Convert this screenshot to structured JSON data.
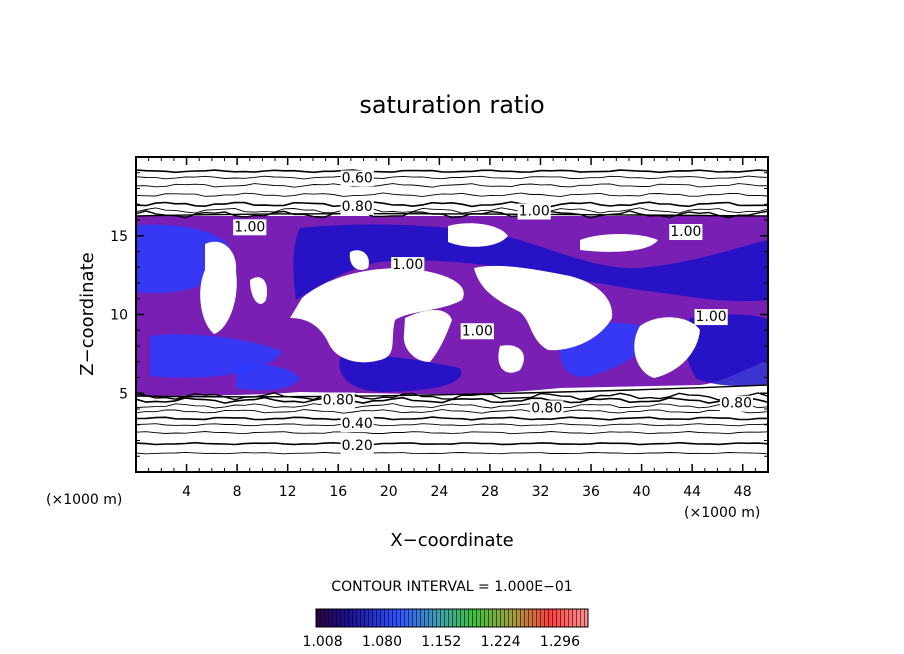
{
  "chart_data": {
    "type": "heatmap",
    "title": "saturation ratio",
    "xlabel": "X−coordinate",
    "ylabel": "Z−coordinate",
    "x_unit": "(×1000 m)",
    "z_unit": "(×1000 m)",
    "xlim": [
      0,
      50
    ],
    "ylim": [
      0,
      20
    ],
    "x_ticks": [
      4,
      8,
      12,
      16,
      20,
      24,
      28,
      32,
      36,
      40,
      44,
      48
    ],
    "y_ticks": [
      5,
      10,
      15
    ],
    "contour_interval_text": "CONTOUR INTERVAL = 1.000E−01",
    "colorbar": {
      "min": 1.0,
      "max": 1.33,
      "labels": [
        "1.008",
        "1.080",
        "1.152",
        "1.224",
        "1.296"
      ],
      "label_values": [
        1.008,
        1.08,
        1.152,
        1.224,
        1.296
      ]
    },
    "contour_labels": [
      {
        "text": "0.60",
        "x": 17.5,
        "z": 18.7
      },
      {
        "text": "0.80",
        "x": 17.5,
        "z": 16.9
      },
      {
        "text": "1.00",
        "x": 31.5,
        "z": 16.6
      },
      {
        "text": "1.00",
        "x": 43.5,
        "z": 15.3
      },
      {
        "text": "1.00",
        "x": 9.0,
        "z": 15.6
      },
      {
        "text": "1.00",
        "x": 21.5,
        "z": 13.2
      },
      {
        "text": "1.00",
        "x": 27.0,
        "z": 9.0
      },
      {
        "text": "1.00",
        "x": 45.5,
        "z": 9.9
      },
      {
        "text": "0.80",
        "x": 16.0,
        "z": 4.6
      },
      {
        "text": "0.80",
        "x": 32.5,
        "z": 4.1
      },
      {
        "text": "0.80",
        "x": 47.5,
        "z": 4.4
      },
      {
        "text": "0.40",
        "x": 17.5,
        "z": 3.1
      },
      {
        "text": "0.20",
        "x": 17.5,
        "z": 1.7
      }
    ],
    "colors": {
      "fill_purple": "#7a1fb4",
      "fill_blue": "#2a3dff",
      "fill_deep": "#1a10c8",
      "axis": "#000000"
    }
  }
}
